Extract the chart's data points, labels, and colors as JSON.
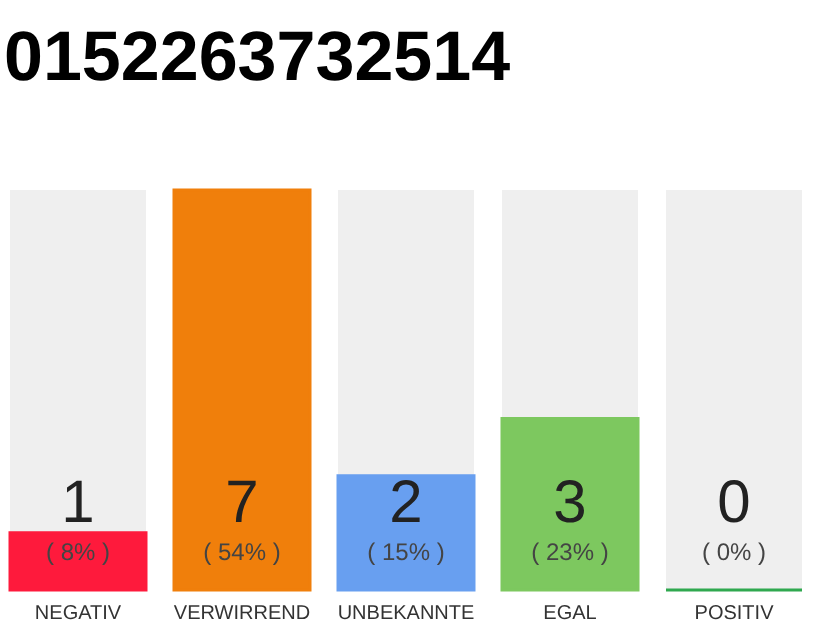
{
  "chart_data": {
    "type": "bar",
    "title": "0152263732514",
    "categories": [
      "NEGATIV",
      "VERWIRREND",
      "UNBEKANNTE",
      "EGAL",
      "POSITIV"
    ],
    "values": [
      1,
      7,
      2,
      3,
      0
    ],
    "colors": [
      "#fe1a3c",
      "#f07f0b",
      "#689ff0",
      "#7dc85f",
      "#2fa84f"
    ],
    "ylim": [
      0,
      7
    ],
    "tick_labels": "x",
    "data_labels": true,
    "annotations": [
      "( 8% )",
      "( 54% )",
      "( 15% )",
      "( 23% )",
      "( 0% )"
    ]
  }
}
